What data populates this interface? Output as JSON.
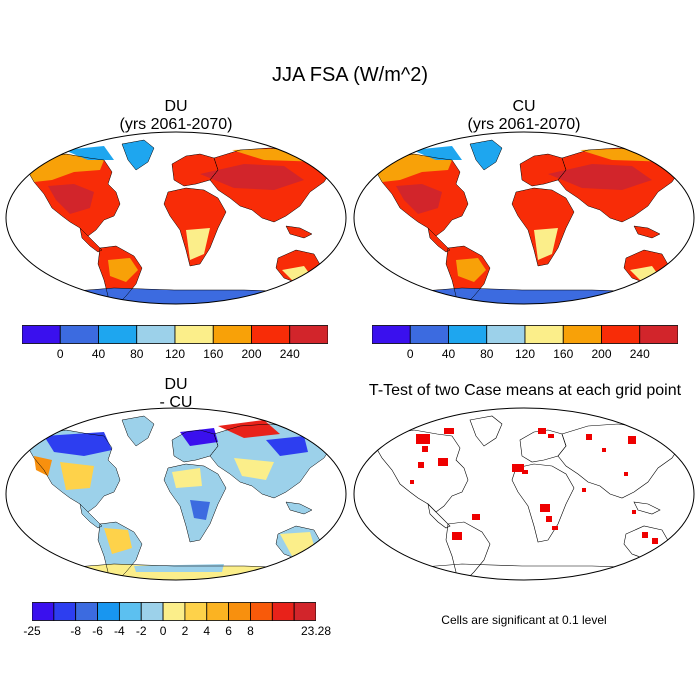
{
  "title": "JJA FSA (W/m^2)",
  "panels": [
    {
      "title_line1": "DU",
      "title_line2": "(yrs 2061-2070)"
    },
    {
      "title_line1": "CU",
      "title_line2": "(yrs 2061-2070)"
    },
    {
      "title_line1": "DU",
      "title_line2": "- CU"
    },
    {
      "title_line1": "T-Test of two Case means at each grid point",
      "title_line2": ""
    }
  ],
  "colorbar_abs": {
    "colors": [
      "#3a10ee",
      "#3c6be0",
      "#1ea6ef",
      "#9cd1ea",
      "#fbee8a",
      "#f8a108",
      "#f82c07",
      "#d2252b"
    ],
    "tick_labels": [
      "0",
      "40",
      "80",
      "120",
      "160",
      "200",
      "240"
    ]
  },
  "colorbar_diff": {
    "colors": [
      "#3a10ee",
      "#2d3ef0",
      "#3c6be0",
      "#1896f0",
      "#5cc0f0",
      "#9cd1ea",
      "#fbee8a",
      "#fed24a",
      "#fbb322",
      "#f8900e",
      "#f85a0a",
      "#e8221a",
      "#d2252b"
    ],
    "tick_labels": [
      "-25",
      "-8",
      "-6",
      "-4",
      "-2",
      "0",
      "2",
      "4",
      "6",
      "8",
      "23.28"
    ]
  },
  "significance_color": "#ee0000",
  "note": "Cells are significant at 0.1 level"
}
